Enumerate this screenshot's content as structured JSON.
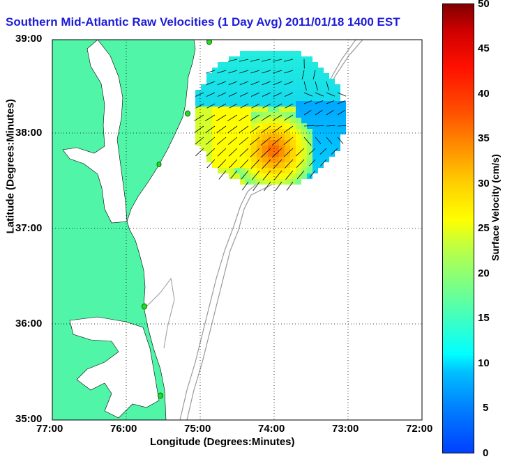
{
  "title": "Southern Mid-Atlantic Raw Velocities (1 Day Avg) 2011/01/18 1400 EST",
  "axes": {
    "xlabel": "Longitude (Degrees:Minutes)",
    "ylabel": "Latitude (Degrees:Minutes)",
    "x_ticks": [
      "77:00",
      "76:00",
      "75:00",
      "74:00",
      "73:00",
      "72:00"
    ],
    "y_ticks": [
      "39:00",
      "38:00",
      "37:00",
      "36:00",
      "35:00"
    ],
    "xlim": [
      -77,
      -72
    ],
    "ylim": [
      35,
      39
    ]
  },
  "colorbar": {
    "label": "Surface Velocity (cm/s)",
    "ticks": [
      "0",
      "5",
      "10",
      "15",
      "20",
      "25",
      "30",
      "35",
      "40",
      "45",
      "50"
    ],
    "range": [
      0,
      50
    ]
  },
  "colors": {
    "land": "#50f5a8",
    "water": "#ffffff",
    "title": "#1d1bd8",
    "stations": "#22dd22",
    "isobaths": "#999999"
  }
}
